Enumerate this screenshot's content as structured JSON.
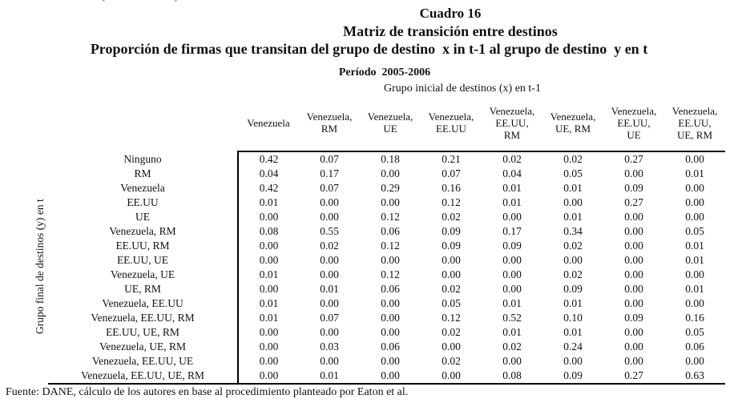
{
  "page": {
    "clipped_fragment": "(                 )",
    "title_line1": "Cuadro 16",
    "title_line2": "Matriz de transición entre destinos",
    "title_line3": "Proporción de firmas que transitan del grupo de destino  x in t-1 al grupo de destino  y en t",
    "period": "Período  2005-2006",
    "x_group_label": "Grupo inicial de destinos (x) en t-1",
    "y_group_label": "Grupo final de destinos (y) en t",
    "source": "Fuente: DANE, cálculo de los autores en base al procedimiento planteado por Eaton et al."
  },
  "chart_data": {
    "type": "table",
    "title": "Cuadro 16 — Matriz de transición entre destinos",
    "columns": [
      [
        "Venezuela"
      ],
      [
        "Venezuela,",
        "RM"
      ],
      [
        "Venezuela,",
        "UE"
      ],
      [
        "Venezuela,",
        "EE.UU"
      ],
      [
        "Venezuela,",
        "EE.UU,",
        "RM"
      ],
      [
        "Venezuela,",
        "UE, RM"
      ],
      [
        "Venezuela,",
        "EE.UU,",
        "UE"
      ],
      [
        "Venezuela,",
        "EE.UU,",
        "UE, RM"
      ]
    ],
    "rows": [
      {
        "label": "Ninguno",
        "values": [
          "0.42",
          "0.07",
          "0.18",
          "0.21",
          "0.02",
          "0.02",
          "0.27",
          "0.00"
        ]
      },
      {
        "label": "RM",
        "values": [
          "0.04",
          "0.17",
          "0.00",
          "0.07",
          "0.04",
          "0.05",
          "0.00",
          "0.01"
        ]
      },
      {
        "label": "Venezuela",
        "values": [
          "0.42",
          "0.07",
          "0.29",
          "0.16",
          "0.01",
          "0.01",
          "0.09",
          "0.00"
        ]
      },
      {
        "label": "EE.UU",
        "values": [
          "0.01",
          "0.00",
          "0.00",
          "0.12",
          "0.01",
          "0.00",
          "0.27",
          "0.00"
        ]
      },
      {
        "label": "UE",
        "values": [
          "0.00",
          "0.00",
          "0.12",
          "0.02",
          "0.00",
          "0.01",
          "0.00",
          "0.00"
        ]
      },
      {
        "label": "Venezuela, RM",
        "values": [
          "0.08",
          "0.55",
          "0.06",
          "0.09",
          "0.17",
          "0.34",
          "0.00",
          "0.05"
        ]
      },
      {
        "label": "EE.UU, RM",
        "values": [
          "0.00",
          "0.02",
          "0.12",
          "0.09",
          "0.09",
          "0.02",
          "0.00",
          "0.01"
        ]
      },
      {
        "label": "EE.UU, UE",
        "values": [
          "0.00",
          "0.00",
          "0.00",
          "0.00",
          "0.00",
          "0.00",
          "0.00",
          "0.01"
        ]
      },
      {
        "label": "Venezuela, UE",
        "values": [
          "0.01",
          "0.00",
          "0.12",
          "0.00",
          "0.00",
          "0.02",
          "0.00",
          "0.00"
        ]
      },
      {
        "label": "UE, RM",
        "values": [
          "0.00",
          "0.01",
          "0.06",
          "0.02",
          "0.00",
          "0.09",
          "0.00",
          "0.01"
        ]
      },
      {
        "label": "Venezuela, EE.UU",
        "values": [
          "0.01",
          "0.00",
          "0.00",
          "0.05",
          "0.01",
          "0.01",
          "0.00",
          "0.00"
        ]
      },
      {
        "label": "Venezuela, EE.UU, RM",
        "values": [
          "0.01",
          "0.07",
          "0.00",
          "0.12",
          "0.52",
          "0.10",
          "0.09",
          "0.16"
        ]
      },
      {
        "label": "EE.UU, UE, RM",
        "values": [
          "0.00",
          "0.00",
          "0.00",
          "0.02",
          "0.01",
          "0.01",
          "0.00",
          "0.05"
        ]
      },
      {
        "label": "Venezuela, UE, RM",
        "values": [
          "0.00",
          "0.03",
          "0.06",
          "0.00",
          "0.02",
          "0.24",
          "0.00",
          "0.06"
        ]
      },
      {
        "label": "Venezuela, EE.UU, UE",
        "values": [
          "0.00",
          "0.00",
          "0.00",
          "0.02",
          "0.00",
          "0.00",
          "0.00",
          "0.00"
        ]
      },
      {
        "label": "Venezuela, EE.UU, UE, RM",
        "values": [
          "0.00",
          "0.01",
          "0.00",
          "0.00",
          "0.08",
          "0.09",
          "0.27",
          "0.63"
        ]
      }
    ]
  }
}
